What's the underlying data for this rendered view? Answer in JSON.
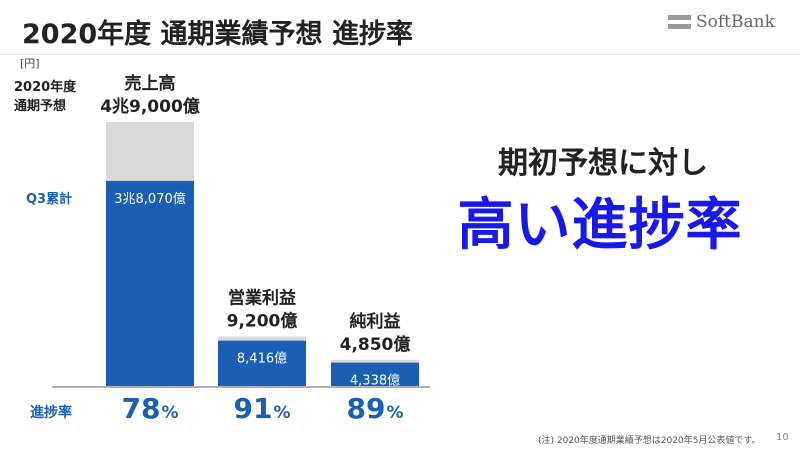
{
  "header": {
    "title": "2020年度 通期業績予想 進捗率",
    "logo_text": "SoftBank"
  },
  "unit": "[円]",
  "row_labels": {
    "forecast_line1": "2020年度",
    "forecast_line2": "通期予想",
    "q3": "Q3累計",
    "progress": "進捗率"
  },
  "message": {
    "line1": "期初予想に対し",
    "line2": "高い進捗率"
  },
  "footnote": "(注) 2020年度通期業績予想は2020年5月公表値です。",
  "page_number": "10",
  "colors": {
    "accent_blue": "#1a5fb4",
    "bar_forecast": "#d9d9d9",
    "bar_actual": "#1a5fb4",
    "highlight_text": "#1818e8"
  },
  "chart_data": {
    "type": "bar",
    "categories": [
      "売上高",
      "営業利益",
      "純利益"
    ],
    "series": [
      {
        "values": [
          49000,
          9200,
          4850
        ]
      },
      {
        "values": [
          38070,
          8416,
          4338
        ]
      }
    ],
    "forecast_labels": [
      "4兆9,000億",
      "9,200億",
      "4,850億"
    ],
    "q3_labels": [
      "3兆8,070億",
      "8,416億",
      "4,338億"
    ],
    "progress_rate": [
      78,
      91,
      89
    ],
    "progress_unit": "%",
    "value_unit": "億円",
    "ylim": [
      0,
      49000
    ]
  }
}
